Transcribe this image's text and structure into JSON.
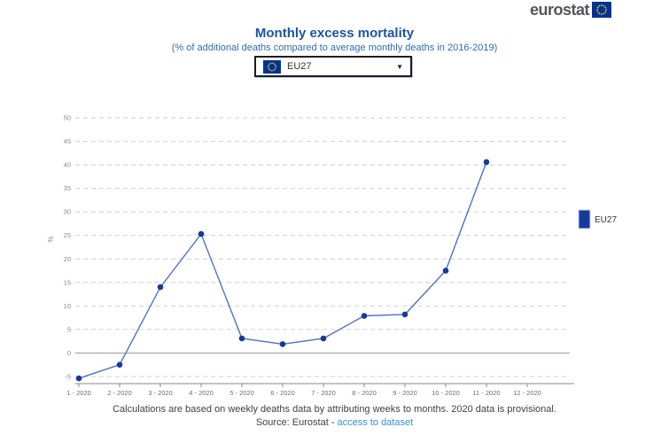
{
  "header": {
    "logo_text": "eurostat",
    "logo_flag_icon": "eu-flag-icon",
    "logo_color": "#55565a",
    "flag_blue": "#003399",
    "flag_star_yellow": "#ffcc00"
  },
  "controls": {
    "selected_option": "EU27",
    "dropdown_icon": "chevron-down-icon",
    "caret_glyph": "▼"
  },
  "chart_data": {
    "type": "line",
    "title": "Monthly excess mortality",
    "subtitle": "(% of additional deaths compared to average monthly deaths in 2016-2019)",
    "ylabel": "%",
    "xlabel": "",
    "ylim": [
      -5,
      50
    ],
    "ytick_step": 5,
    "grid": "horizontal-dashed",
    "zero_line": true,
    "legend_position": "right",
    "categories": [
      "1 - 2020",
      "2 - 2020",
      "3 - 2020",
      "4 - 2020",
      "5 - 2020",
      "6 - 2020",
      "7 - 2020",
      "8 - 2020",
      "9 - 2020",
      "10 - 2020",
      "11 - 2020",
      "12 - 2020"
    ],
    "series": [
      {
        "name": "EU27",
        "values": [
          -5.4,
          -2.5,
          14.0,
          25.3,
          3.1,
          1.9,
          3.1,
          7.9,
          8.2,
          17.5,
          40.6,
          null
        ],
        "line_color": "#4f6fd0",
        "marker_color": "#16399c"
      }
    ],
    "colors": {
      "gridline": "#cfcfcf",
      "zero_line": "#9a9a9a",
      "axis_line": "#8a8a8a",
      "tick_label": "#6e6e6e"
    }
  },
  "footer": {
    "note": "Calculations are based on weekly deaths data by attributing weeks to months. 2020 data is provisional.",
    "source_prefix": "Source: Eurostat - ",
    "link_label": "access to dataset",
    "link_color": "#3b8ede"
  }
}
